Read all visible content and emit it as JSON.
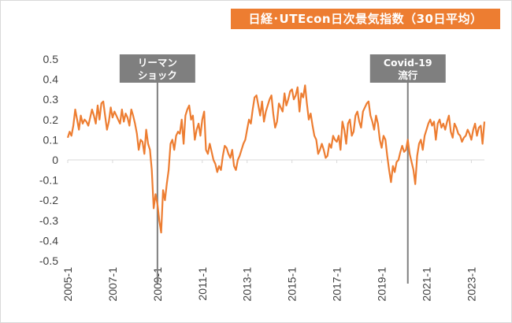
{
  "colors": {
    "series": "#ed7d31",
    "title_bg": "#ed7d31",
    "annotation_bg": "#7f7f7f",
    "zero_line": "#d9d9d9"
  },
  "chart_data": {
    "type": "line",
    "title": "日経･UTEcon日次景気指数（30日平均）",
    "xlabel": "",
    "ylabel": "",
    "ylim": [
      -0.5,
      0.5
    ],
    "yticks": [
      "0.5",
      "0.4",
      "0.3",
      "0.2",
      "0.1",
      "0",
      "-0.1",
      "-0.2",
      "-0.3",
      "-0.4",
      "-0.5"
    ],
    "xlim": [
      "2005-01",
      "2023-08"
    ],
    "xticks": [
      "2005-1",
      "2007-1",
      "2009-1",
      "2011-1",
      "2013-1",
      "2015-1",
      "2017-1",
      "2019-1",
      "2021-1",
      "2023-1"
    ],
    "grid": false,
    "legend": "none",
    "series": [
      {
        "x": [
          "2005-01",
          "2005-02",
          "2005-03",
          "2005-04",
          "2005-05",
          "2005-06",
          "2005-07",
          "2005-08",
          "2005-09",
          "2005-10",
          "2005-11",
          "2005-12",
          "2006-01",
          "2006-02",
          "2006-03",
          "2006-04",
          "2006-05",
          "2006-06",
          "2006-07",
          "2006-08",
          "2006-09",
          "2006-10",
          "2006-11",
          "2006-12",
          "2007-01",
          "2007-02",
          "2007-03",
          "2007-04",
          "2007-05",
          "2007-06",
          "2007-07",
          "2007-08",
          "2007-09",
          "2007-10",
          "2007-11",
          "2007-12",
          "2008-01",
          "2008-02",
          "2008-03",
          "2008-04",
          "2008-05",
          "2008-06",
          "2008-07",
          "2008-08",
          "2008-09",
          "2008-10",
          "2008-11",
          "2008-12",
          "2009-01",
          "2009-02",
          "2009-03",
          "2009-04",
          "2009-05",
          "2009-06",
          "2009-07",
          "2009-08",
          "2009-09",
          "2009-10",
          "2009-11",
          "2009-12",
          "2010-01",
          "2010-02",
          "2010-03",
          "2010-04",
          "2010-05",
          "2010-06",
          "2010-07",
          "2010-08",
          "2010-09",
          "2010-10",
          "2010-11",
          "2010-12",
          "2011-01",
          "2011-02",
          "2011-03",
          "2011-04",
          "2011-05",
          "2011-06",
          "2011-07",
          "2011-08",
          "2011-09",
          "2011-10",
          "2011-11",
          "2011-12",
          "2012-01",
          "2012-02",
          "2012-03",
          "2012-04",
          "2012-05",
          "2012-06",
          "2012-07",
          "2012-08",
          "2012-09",
          "2012-10",
          "2012-11",
          "2012-12",
          "2013-01",
          "2013-02",
          "2013-03",
          "2013-04",
          "2013-05",
          "2013-06",
          "2013-07",
          "2013-08",
          "2013-09",
          "2013-10",
          "2013-11",
          "2013-12",
          "2014-01",
          "2014-02",
          "2014-03",
          "2014-04",
          "2014-05",
          "2014-06",
          "2014-07",
          "2014-08",
          "2014-09",
          "2014-10",
          "2014-11",
          "2014-12",
          "2015-01",
          "2015-02",
          "2015-03",
          "2015-04",
          "2015-05",
          "2015-06",
          "2015-07",
          "2015-08",
          "2015-09",
          "2015-10",
          "2015-11",
          "2015-12",
          "2016-01",
          "2016-02",
          "2016-03",
          "2016-04",
          "2016-05",
          "2016-06",
          "2016-07",
          "2016-08",
          "2016-09",
          "2016-10",
          "2016-11",
          "2016-12",
          "2017-01",
          "2017-02",
          "2017-03",
          "2017-04",
          "2017-05",
          "2017-06",
          "2017-07",
          "2017-08",
          "2017-09",
          "2017-10",
          "2017-11",
          "2017-12",
          "2018-01",
          "2018-02",
          "2018-03",
          "2018-04",
          "2018-05",
          "2018-06",
          "2018-07",
          "2018-08",
          "2018-09",
          "2018-10",
          "2018-11",
          "2018-12",
          "2019-01",
          "2019-02",
          "2019-03",
          "2019-04",
          "2019-05",
          "2019-06",
          "2019-07",
          "2019-08",
          "2019-09",
          "2019-10",
          "2019-11",
          "2019-12",
          "2020-01",
          "2020-02",
          "2020-03",
          "2020-04",
          "2020-05",
          "2020-06",
          "2020-07",
          "2020-08",
          "2020-09",
          "2020-10",
          "2020-11",
          "2020-12",
          "2021-01",
          "2021-02",
          "2021-03",
          "2021-04",
          "2021-05",
          "2021-06",
          "2021-07",
          "2021-08",
          "2021-09",
          "2021-10",
          "2021-11",
          "2021-12",
          "2022-01",
          "2022-02",
          "2022-03",
          "2022-04",
          "2022-05",
          "2022-06",
          "2022-07",
          "2022-08",
          "2022-09",
          "2022-10",
          "2022-11",
          "2022-12",
          "2023-01",
          "2023-02",
          "2023-03",
          "2023-04",
          "2023-05",
          "2023-06",
          "2023-07",
          "2023-08"
        ],
        "values": [
          0.11,
          0.14,
          0.12,
          0.17,
          0.25,
          0.2,
          0.15,
          0.22,
          0.18,
          0.2,
          0.19,
          0.17,
          0.21,
          0.25,
          0.22,
          0.18,
          0.27,
          0.2,
          0.28,
          0.29,
          0.22,
          0.15,
          0.19,
          0.26,
          0.21,
          0.24,
          0.22,
          0.2,
          0.18,
          0.25,
          0.19,
          0.23,
          0.21,
          0.17,
          0.25,
          0.22,
          0.18,
          0.13,
          0.05,
          0.1,
          0.09,
          0.03,
          0.15,
          0.08,
          0.05,
          -0.05,
          -0.24,
          -0.17,
          -0.22,
          -0.3,
          -0.36,
          -0.15,
          -0.2,
          -0.12,
          -0.05,
          0.08,
          0.1,
          0.05,
          0.12,
          0.14,
          0.13,
          0.2,
          0.08,
          0.22,
          0.25,
          0.27,
          0.2,
          0.22,
          0.1,
          0.15,
          0.18,
          0.12,
          0.2,
          0.24,
          0.05,
          0.03,
          0.08,
          0.04,
          0.0,
          -0.02,
          -0.06,
          -0.03,
          -0.05,
          0.02,
          0.07,
          0.06,
          0.03,
          0.01,
          0.05,
          -0.03,
          -0.05,
          0.0,
          0.02,
          0.05,
          0.08,
          0.1,
          0.15,
          0.2,
          0.18,
          0.25,
          0.31,
          0.32,
          0.27,
          0.22,
          0.29,
          0.19,
          0.24,
          0.27,
          0.3,
          0.32,
          0.23,
          0.16,
          0.19,
          0.28,
          0.26,
          0.24,
          0.33,
          0.27,
          0.3,
          0.34,
          0.35,
          0.3,
          0.32,
          0.36,
          0.24,
          0.33,
          0.31,
          0.37,
          0.28,
          0.2,
          0.23,
          0.17,
          0.12,
          0.1,
          0.03,
          0.05,
          0.08,
          0.05,
          0.01,
          0.02,
          0.08,
          0.06,
          0.12,
          0.1,
          0.09,
          0.12,
          0.05,
          0.19,
          0.15,
          0.08,
          0.18,
          0.2,
          0.12,
          0.14,
          0.22,
          0.24,
          0.19,
          0.16,
          0.24,
          0.26,
          0.28,
          0.29,
          0.22,
          0.19,
          0.15,
          0.22,
          0.18,
          0.1,
          0.06,
          0.12,
          0.1,
          0.02,
          -0.05,
          -0.11,
          -0.03,
          -0.06,
          -0.01,
          0.0,
          0.04,
          0.07,
          0.04,
          0.05,
          0.1,
          0.03,
          -0.01,
          -0.05,
          -0.12,
          0.02,
          0.08,
          0.1,
          0.05,
          0.12,
          0.15,
          0.18,
          0.2,
          0.17,
          0.19,
          0.1,
          0.18,
          0.2,
          0.16,
          0.18,
          0.15,
          0.19,
          0.22,
          0.14,
          0.11,
          0.18,
          0.16,
          0.13,
          0.12,
          0.09,
          0.11,
          0.12,
          0.15,
          0.13,
          0.1,
          0.15,
          0.18,
          0.12,
          0.16,
          0.17,
          0.08,
          0.19
        ]
      }
    ],
    "annotations": [
      {
        "id": "lehman",
        "lines": [
          "リーマン",
          "ショック"
        ],
        "x": "2009-01"
      },
      {
        "id": "covid",
        "lines": [
          "Covid-19",
          "流行"
        ],
        "x": "2020-03"
      }
    ]
  }
}
